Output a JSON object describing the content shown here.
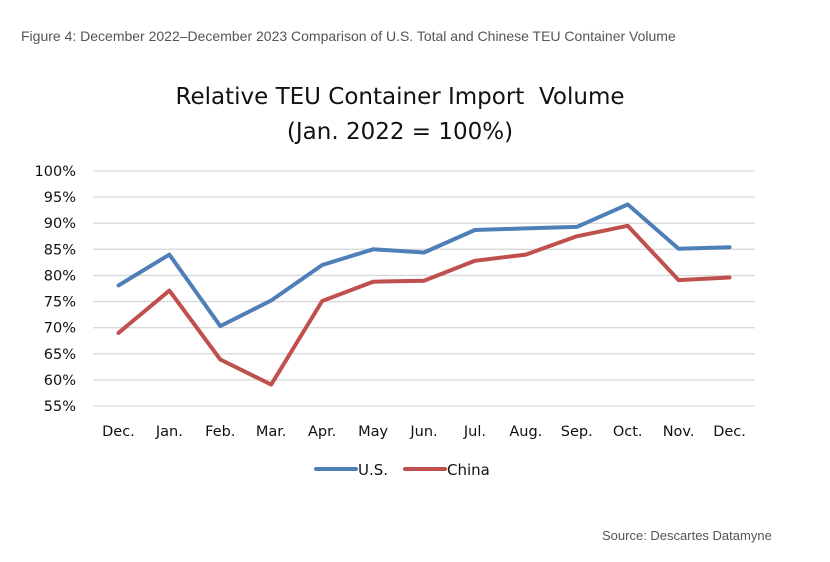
{
  "caption": "Figure 4: December 2022–December 2023 Comparison of U.S. Total and Chinese TEU Container Volume",
  "source": "Source: Descartes Datamyne",
  "chart_data": {
    "type": "line",
    "title": "Relative TEU Container Import  Volume",
    "subtitle": "(Jan. 2022 = 100%)",
    "xlabel": "",
    "ylabel": "",
    "categories": [
      "Dec.",
      "Jan.",
      "Feb.",
      "Mar.",
      "Apr.",
      "May",
      "Jun.",
      "Jul.",
      "Aug.",
      "Sep.",
      "Oct.",
      "Nov.",
      "Dec."
    ],
    "ylim": [
      55,
      100
    ],
    "yticks": [
      55,
      60,
      65,
      70,
      75,
      80,
      85,
      90,
      95,
      100
    ],
    "ytick_labels": [
      "55%",
      "60%",
      "65%",
      "70%",
      "75%",
      "80%",
      "85%",
      "90%",
      "95%",
      "100%"
    ],
    "grid": true,
    "legend_position": "bottom",
    "series": [
      {
        "name": "U.S.",
        "color": "#4f7fb8",
        "values": [
          78.1,
          84.0,
          70.3,
          75.2,
          82.0,
          85.0,
          84.4,
          88.7,
          89.0,
          89.3,
          93.6,
          85.1,
          85.4
        ]
      },
      {
        "name": "China",
        "color": "#c0504d",
        "values": [
          69.0,
          77.1,
          63.9,
          59.1,
          75.1,
          78.8,
          79.0,
          82.8,
          84.0,
          87.5,
          89.5,
          79.1,
          79.6
        ]
      }
    ]
  }
}
